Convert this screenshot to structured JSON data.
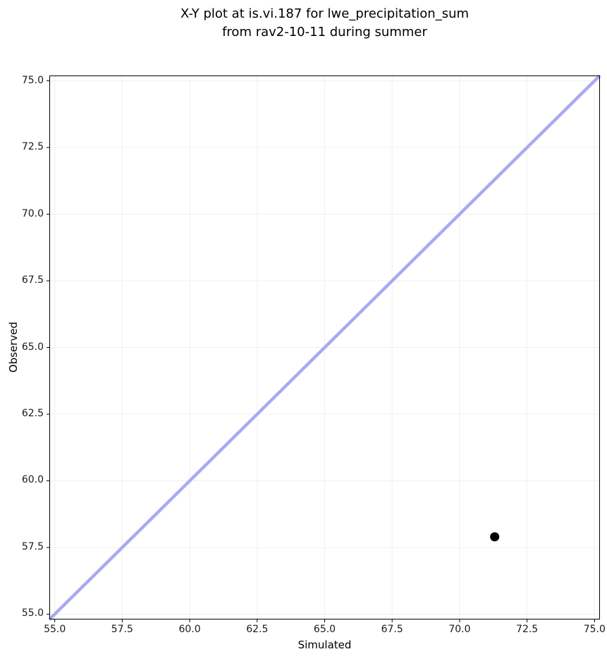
{
  "figure": {
    "title": "X-Y plot at is.vi.187 for lwe_precipitation_sum\nfrom rav2-10-11 during summer"
  },
  "chart_data": {
    "type": "scatter",
    "title": "X-Y plot at is.vi.187 for lwe_precipitation_sum from rav2-10-11 during summer",
    "xlabel": "Simulated",
    "ylabel": "Observed",
    "xlim": [
      54.8,
      75.2
    ],
    "ylim": [
      54.8,
      75.2
    ],
    "xticks": [
      55.0,
      57.5,
      60.0,
      62.5,
      65.0,
      67.5,
      70.0,
      72.5,
      75.0
    ],
    "yticks": [
      55.0,
      57.5,
      60.0,
      62.5,
      65.0,
      67.5,
      70.0,
      72.5,
      75.0
    ],
    "tick_format_decimals": 1,
    "grid": true,
    "legend": "none",
    "series": [
      {
        "name": "identity-line",
        "kind": "line",
        "x": [
          54.8,
          75.2
        ],
        "y": [
          54.8,
          75.2
        ],
        "color": "#a9a9f2",
        "line_width": 4.5
      },
      {
        "name": "observed-vs-simulated-point",
        "kind": "scatter",
        "x": [
          71.3
        ],
        "y": [
          57.9
        ],
        "color": "#000000",
        "marker_radius": 6.5
      }
    ],
    "colors": {
      "background": "#ffffff",
      "grid": "#f0f0f0",
      "spine": "#000000",
      "tick": "#000000",
      "tick_label": "#1a1a1a"
    }
  }
}
